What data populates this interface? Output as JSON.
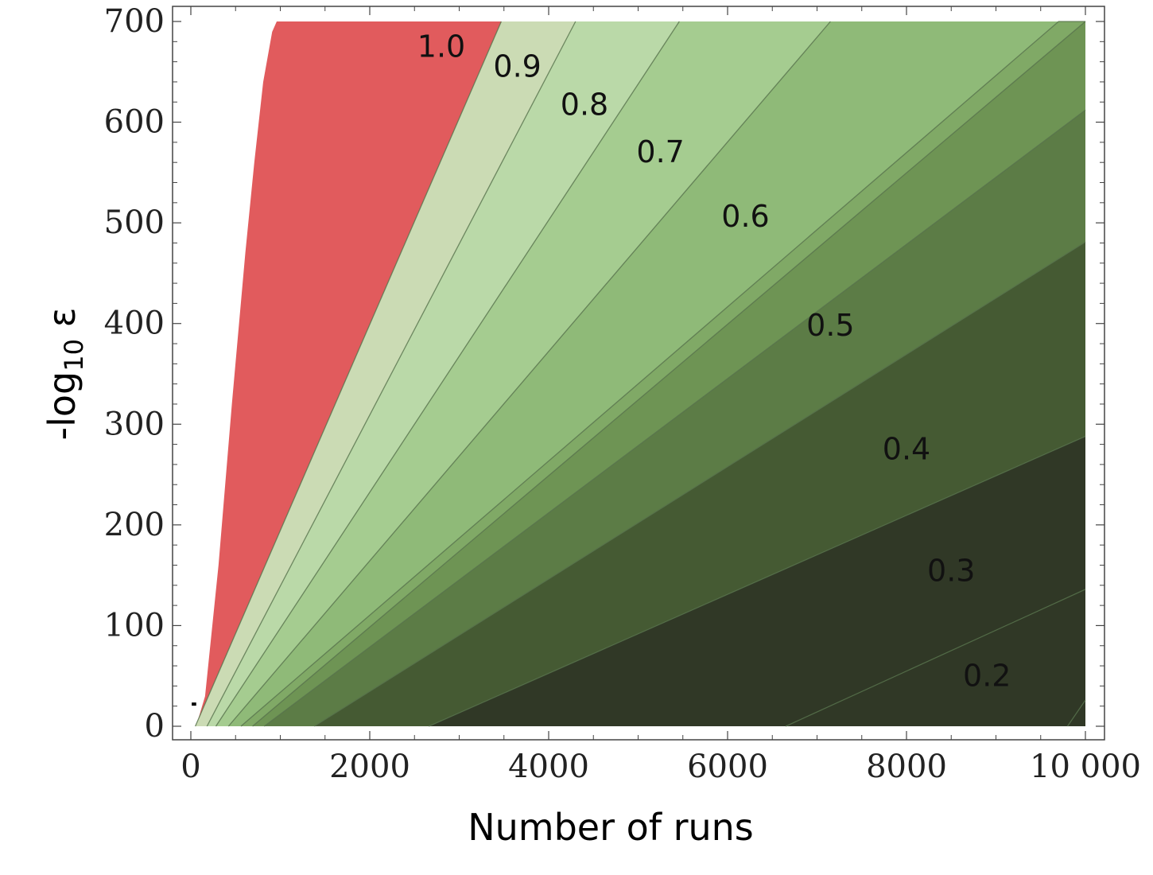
{
  "chart_data": {
    "type": "contour",
    "title": "",
    "xlabel": "Number of runs",
    "ylabel": {
      "prefix": "-log",
      "subscript": "10",
      "suffix": " ε"
    },
    "xlim": [
      0,
      10000
    ],
    "ylim": [
      0,
      700
    ],
    "x_ticks": [
      0,
      2000,
      4000,
      6000,
      8000,
      10000
    ],
    "x_tick_labels": [
      "0",
      "2000",
      "4000",
      "6000",
      "8000",
      "10 000"
    ],
    "y_ticks": [
      0,
      100,
      200,
      300,
      400,
      500,
      600,
      700
    ],
    "y_tick_labels": [
      "0",
      "100",
      "200",
      "300",
      "400",
      "500",
      "600",
      "700"
    ],
    "grid": false,
    "legend": "none",
    "region_above_1_color": "#e15b5d",
    "contours": [
      {
        "level": 1.0,
        "x_at_top": 3470,
        "label": "1.0",
        "label_at": [
          2800,
          665
        ]
      },
      {
        "level": 0.95,
        "x_at_top": 4300
      },
      {
        "level": 0.9,
        "x_at_top": 5460,
        "label": "0.9",
        "label_at": [
          3650,
          645
        ]
      },
      {
        "level": 0.85,
        "x_at_top": 7150
      },
      {
        "level": 0.8,
        "right_y": 700,
        "label": "0.8",
        "label_at": [
          4400,
          607
        ]
      },
      {
        "level": 0.75,
        "right_y": 700
      },
      {
        "level": 0.7,
        "right_y": 612,
        "label": "0.7",
        "label_at": [
          5250,
          560
        ]
      },
      {
        "level": 0.6,
        "right_y": 481,
        "label": "0.6",
        "label_at": [
          6200,
          496
        ]
      },
      {
        "level": 0.5,
        "right_y": 288,
        "label": "0.5",
        "label_at": [
          7150,
          388
        ]
      },
      {
        "level": 0.4,
        "right_y": 136,
        "label": "0.4",
        "label_at": [
          8000,
          265
        ]
      },
      {
        "level": 0.3,
        "right_y": 26,
        "label": "0.3",
        "label_at": [
          8500,
          144
        ]
      },
      {
        "level": 0.2,
        "label": "0.2",
        "label_at": [
          8900,
          40
        ]
      }
    ],
    "fill_colors": [
      "#cbdbb4",
      "#bad9a8",
      "#a5cc90",
      "#8fba78",
      "#80a966",
      "#6e9454",
      "#5c7c46",
      "#455a33",
      "#303826"
    ]
  }
}
